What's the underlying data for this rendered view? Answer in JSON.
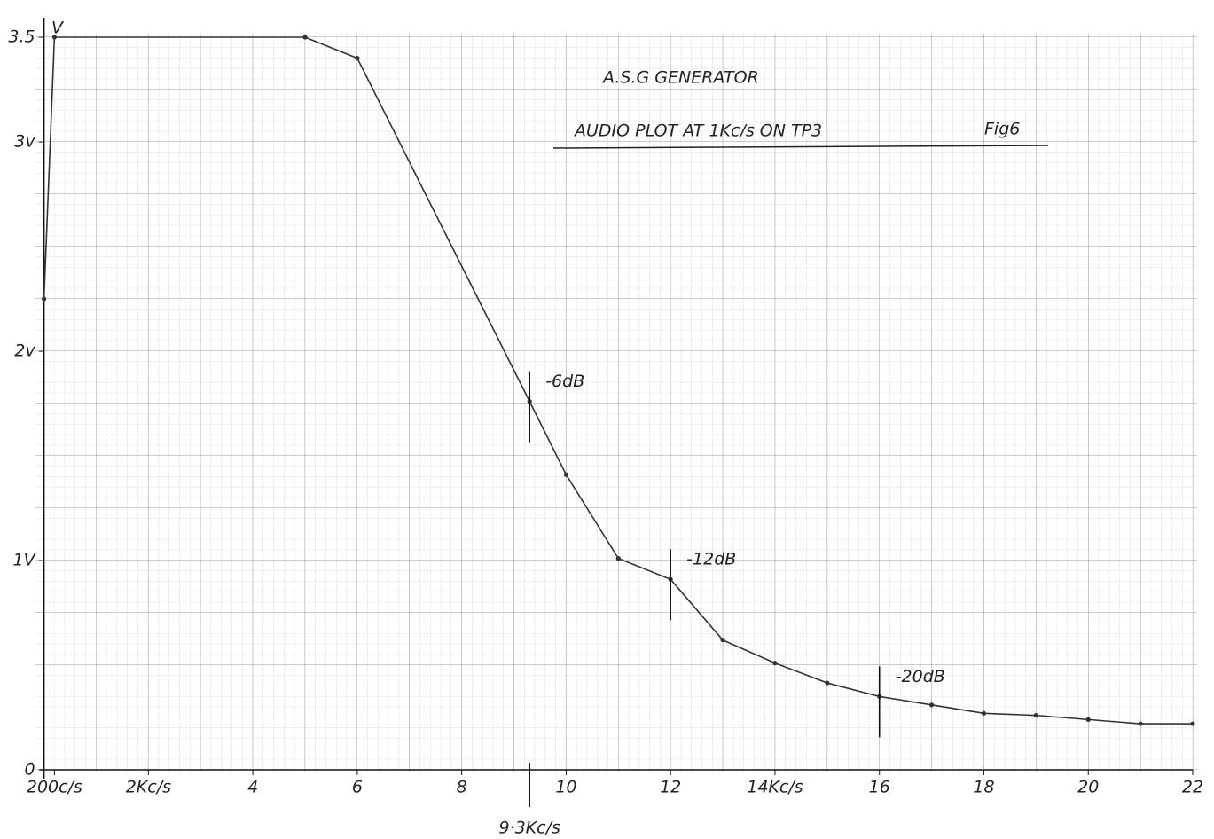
{
  "chart_data": {
    "type": "line",
    "title": "A.S.G GENERATOR",
    "subtitle": "AUDIO PLOT AT 1Kc/s ON TP3",
    "figure_label": "Fig6",
    "y_label": "V",
    "x": [
      0,
      0.2,
      5,
      6,
      9.3,
      10,
      11,
      12,
      13,
      14,
      15,
      16,
      17,
      18,
      19,
      20,
      21,
      22
    ],
    "series": [
      {
        "color": "#333333",
        "values": [
          2.25,
          3.5,
          3.5,
          3.4,
          1.76,
          1.41,
          1.01,
          0.91,
          0.62,
          0.51,
          0.415,
          0.35,
          0.31,
          0.27,
          0.26,
          0.24,
          0.22,
          0.22
        ]
      }
    ],
    "xlim": [
      0,
      22
    ],
    "ylim": [
      0,
      3.5
    ],
    "xticks": [
      {
        "value": 0.2,
        "label": "200c/s"
      },
      {
        "value": 2,
        "label": "2Kc/s"
      },
      4,
      6,
      8,
      10,
      12,
      {
        "value": 14,
        "label": "14Kc/s"
      },
      16,
      18,
      20,
      22
    ],
    "yticks": [
      0,
      {
        "value": 1,
        "label": "1V"
      },
      {
        "value": 2,
        "label": "2v"
      },
      {
        "value": 3,
        "label": "3v"
      },
      3.5
    ],
    "x_markers": [
      {
        "value": 9.3,
        "label": "9·3Kc/s"
      }
    ],
    "annotations": [
      {
        "x": 9.3,
        "text": "-6dB"
      },
      {
        "x": 12,
        "text": "-12dB"
      },
      {
        "x": 16,
        "text": "-20dB"
      }
    ],
    "grid": true
  }
}
